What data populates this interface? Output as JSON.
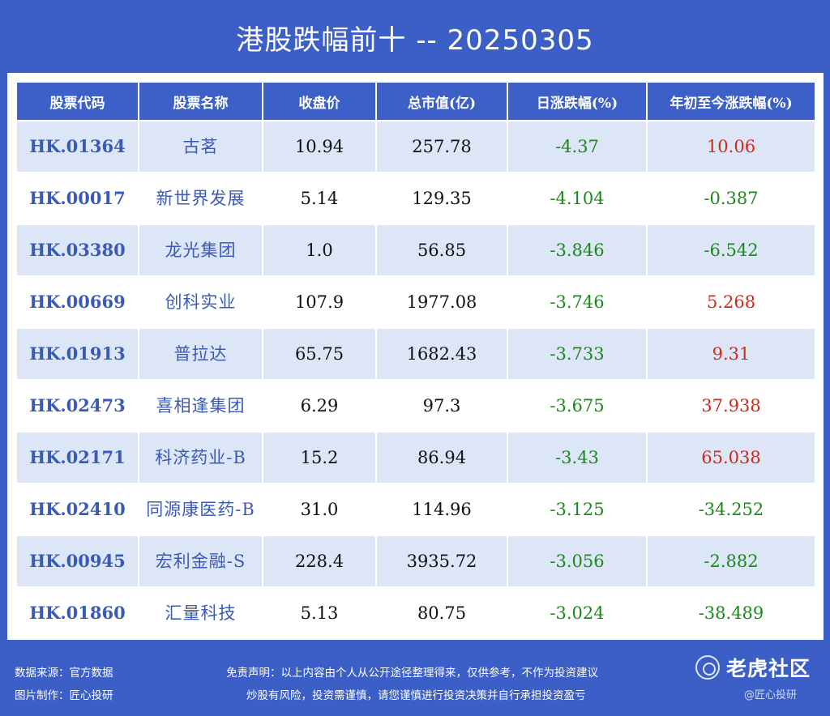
{
  "title": "港股跌幅前十 -- 20250305",
  "colors": {
    "background": "#3b5fc6",
    "header_bg": "#3c60c8",
    "row_alt": "#dde6f6",
    "code_text": "#3a5bb5",
    "negative": "#1a8a1a",
    "positive": "#d0281c"
  },
  "table": {
    "headers": [
      "股票代码",
      "股票名称",
      "收盘价",
      "总市值(亿)",
      "日涨跌幅(%)",
      "年初至今涨跌幅(%)"
    ],
    "rows": [
      {
        "code": "HK.01364",
        "name": "古茗",
        "close": "10.94",
        "market_cap": "257.78",
        "daily_change": "-4.37",
        "ytd_change": "10.06"
      },
      {
        "code": "HK.00017",
        "name": "新世界发展",
        "close": "5.14",
        "market_cap": "129.35",
        "daily_change": "-4.104",
        "ytd_change": "-0.387"
      },
      {
        "code": "HK.03380",
        "name": "龙光集团",
        "close": "1.0",
        "market_cap": "56.85",
        "daily_change": "-3.846",
        "ytd_change": "-6.542"
      },
      {
        "code": "HK.00669",
        "name": "创科实业",
        "close": "107.9",
        "market_cap": "1977.08",
        "daily_change": "-3.746",
        "ytd_change": "5.268"
      },
      {
        "code": "HK.01913",
        "name": "普拉达",
        "close": "65.75",
        "market_cap": "1682.43",
        "daily_change": "-3.733",
        "ytd_change": "9.31"
      },
      {
        "code": "HK.02473",
        "name": "喜相逢集团",
        "close": "6.29",
        "market_cap": "97.3",
        "daily_change": "-3.675",
        "ytd_change": "37.938"
      },
      {
        "code": "HK.02171",
        "name": "科济药业-B",
        "close": "15.2",
        "market_cap": "86.94",
        "daily_change": "-3.43",
        "ytd_change": "65.038"
      },
      {
        "code": "HK.02410",
        "name": "同源康医药-B",
        "close": "31.0",
        "market_cap": "114.96",
        "daily_change": "-3.125",
        "ytd_change": "-34.252"
      },
      {
        "code": "HK.00945",
        "name": "宏利金融-S",
        "close": "228.4",
        "market_cap": "3935.72",
        "daily_change": "-3.056",
        "ytd_change": "-2.882"
      },
      {
        "code": "HK.01860",
        "name": "汇量科技",
        "close": "5.13",
        "market_cap": "80.75",
        "daily_change": "-3.024",
        "ytd_change": "-38.489"
      }
    ]
  },
  "footer": {
    "source": "数据来源：官方数据",
    "made_by": "图片制作：匠心投研",
    "disclaimer_line1": "免责声明：以上内容由个人从公开途径整理得来，仅供参考，不作为投资建议",
    "disclaimer_line2": "炒股有风险，投资需谨慎，请您谨慎进行投资决策并自行承担投资盈亏",
    "brand": "老虎社区",
    "watermark": "@匠心投研"
  }
}
